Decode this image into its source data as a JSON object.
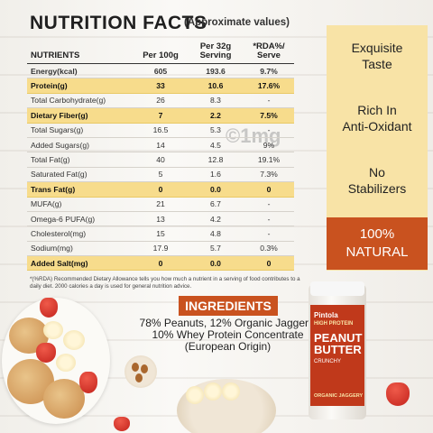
{
  "title": "NUTRITION FACTS",
  "subtitle": "(Approximate values)",
  "table": {
    "headers": [
      "NUTRIENTS",
      "Per 100g",
      "Per 32g\nServing",
      "*RDA%/\nServe"
    ],
    "header_lines": {
      "col2_line1": "Per 32g",
      "col2_line2": "Serving",
      "col3_line1": "*RDA%/",
      "col3_line2": "Serve"
    },
    "rows": [
      {
        "name": "Energy(kcal)",
        "per100": "605",
        "serving": "193.6",
        "rda": "9.7%",
        "highlight": false,
        "bold": true
      },
      {
        "name": "Protein(g)",
        "per100": "33",
        "serving": "10.6",
        "rda": "17.6%",
        "highlight": true
      },
      {
        "name": "Total Carbohydrate(g)",
        "per100": "26",
        "serving": "8.3",
        "rda": "-",
        "highlight": false
      },
      {
        "name": "Dietary Fiber(g)",
        "per100": "7",
        "serving": "2.2",
        "rda": "7.5%",
        "highlight": true
      },
      {
        "name": "Total Sugars(g)",
        "per100": "16.5",
        "serving": "5.3",
        "rda": "-",
        "highlight": false
      },
      {
        "name": "Added Sugars(g)",
        "per100": "14",
        "serving": "4.5",
        "rda": "9%",
        "highlight": false
      },
      {
        "name": "Total Fat(g)",
        "per100": "40",
        "serving": "12.8",
        "rda": "19.1%",
        "highlight": false
      },
      {
        "name": "Saturated Fat(g)",
        "per100": "5",
        "serving": "1.6",
        "rda": "7.3%",
        "highlight": false
      },
      {
        "name": "Trans Fat(g)",
        "per100": "0",
        "serving": "0.0",
        "rda": "0",
        "highlight": true
      },
      {
        "name": "MUFA(g)",
        "per100": "21",
        "serving": "6.7",
        "rda": "-",
        "highlight": false
      },
      {
        "name": "Omega-6 PUFA(g)",
        "per100": "13",
        "serving": "4.2",
        "rda": "-",
        "highlight": false
      },
      {
        "name": "Cholesterol(mg)",
        "per100": "15",
        "serving": "4.8",
        "rda": "-",
        "highlight": false
      },
      {
        "name": "Sodium(mg)",
        "per100": "17.9",
        "serving": "5.7",
        "rda": "0.3%",
        "highlight": false
      },
      {
        "name": "Added Salt(mg)",
        "per100": "0",
        "serving": "0.0",
        "rda": "0",
        "highlight": true
      }
    ]
  },
  "footnote": "*(%RDA) Recommended Dietary Allowance tells you how much a nutrient in a serving of food contributes to a daily diet. 2000 calories a day is used for general nutrition advice.",
  "features": [
    "Exquisite\nTaste",
    "Rich In\nAnti-Oxidant",
    "No\nStabilizers"
  ],
  "feature_lines": [
    {
      "l1": "Exquisite",
      "l2": "Taste"
    },
    {
      "l1": "Rich In",
      "l2": "Anti-Oxidant"
    },
    {
      "l1": "No",
      "l2": "Stabilizers"
    }
  ],
  "natural": {
    "l1": "100%",
    "l2": "NATURAL"
  },
  "ingredients": {
    "heading": "INGREDIENTS",
    "line1": "78% Peanuts, 12% Organic Jaggery,",
    "line2": "10% Whey Protein Concentrate",
    "line3": "(European Origin)"
  },
  "watermark": "©1mg",
  "jar": {
    "brand": "Pintola",
    "protein_label": "HIGH PROTEIN",
    "product_l1": "PEANUT",
    "product_l2": "BUTTER",
    "variant": "CRUNCHY",
    "sweetener": "ORGANIC JAGGERY"
  },
  "colors": {
    "highlight": "#f7dc8c",
    "panel": "#f8e3a6",
    "accent": "#c9521f"
  }
}
